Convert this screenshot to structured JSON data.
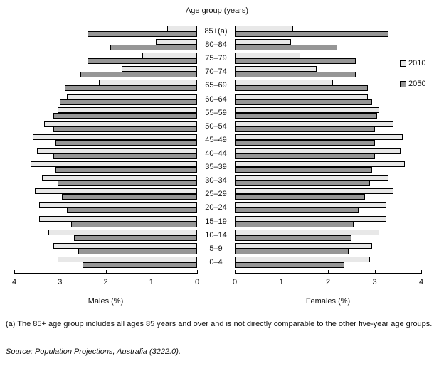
{
  "title": "Age group (years)",
  "legend": [
    {
      "label": "2010",
      "color": "#e8e8e8"
    },
    {
      "label": "2050",
      "color": "#969696"
    }
  ],
  "axes": {
    "max": 4,
    "male": {
      "label": "Males (%)",
      "ticks": [
        "4",
        "3",
        "2",
        "1",
        "0"
      ]
    },
    "female": {
      "label": "Females (%)",
      "ticks": [
        "0",
        "1",
        "2",
        "3",
        "4"
      ]
    }
  },
  "footnote": "(a) The 85+ age group includes all ages 85 years and over and is not directly comparable to the other five-year age groups.",
  "source": "Source: Population Projections, Australia (3222.0).",
  "chart_data": {
    "type": "bar",
    "subtype": "population-pyramid",
    "title": "Age group (years)",
    "xlabel_left": "Males (%)",
    "xlabel_right": "Females (%)",
    "xlim_male": [
      4,
      0
    ],
    "xlim_female": [
      0,
      4
    ],
    "legend_position": "right",
    "categories": [
      "85+(a)",
      "80–84",
      "75–79",
      "70–74",
      "65–69",
      "60–64",
      "55–59",
      "50–54",
      "45–49",
      "40–44",
      "35–39",
      "30–34",
      "25–29",
      "20–24",
      "15–19",
      "10–14",
      "5–9",
      "0–4"
    ],
    "series": [
      {
        "name": "Males 2010",
        "side": "male",
        "year": "2010",
        "values": [
          0.65,
          0.9,
          1.2,
          1.65,
          2.15,
          2.85,
          3.05,
          3.35,
          3.6,
          3.5,
          3.65,
          3.4,
          3.55,
          3.45,
          3.45,
          3.25,
          3.15,
          3.05
        ]
      },
      {
        "name": "Males 2050",
        "side": "male",
        "year": "2050",
        "values": [
          2.4,
          1.9,
          2.4,
          2.55,
          2.9,
          3.0,
          3.15,
          3.15,
          3.1,
          3.15,
          3.1,
          3.05,
          2.95,
          2.85,
          2.75,
          2.7,
          2.6,
          2.5
        ]
      },
      {
        "name": "Females 2010",
        "side": "female",
        "year": "2010",
        "values": [
          1.25,
          1.2,
          1.4,
          1.75,
          2.1,
          2.85,
          3.1,
          3.4,
          3.6,
          3.55,
          3.65,
          3.3,
          3.4,
          3.25,
          3.25,
          3.1,
          2.95,
          2.9
        ]
      },
      {
        "name": "Females 2050",
        "side": "female",
        "year": "2050",
        "values": [
          3.3,
          2.2,
          2.6,
          2.6,
          2.85,
          2.95,
          3.05,
          3.0,
          3.0,
          3.0,
          2.95,
          2.9,
          2.8,
          2.65,
          2.55,
          2.5,
          2.45,
          2.35
        ]
      }
    ]
  }
}
